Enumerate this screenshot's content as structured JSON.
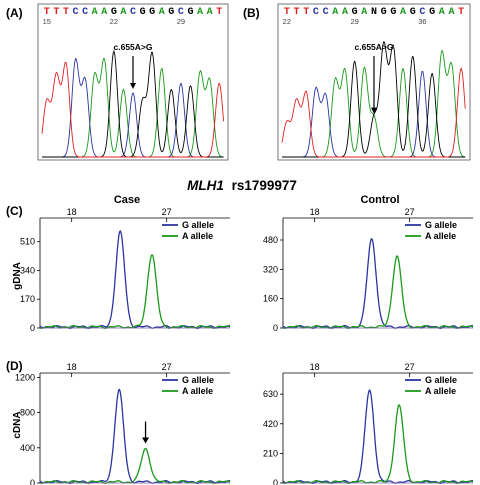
{
  "figure_title": {
    "gene": "MLH1",
    "snp": "rs1799977"
  },
  "colors": {
    "A": "#1a9a1a",
    "C": "#2a35a0",
    "G": "#000000",
    "T": "#e02020",
    "G_allele": "#2a35a0",
    "A_allele": "#1a9a1a"
  },
  "chart_data": [
    {
      "type": "line",
      "panel": "(A)",
      "sequence": [
        "T",
        "T",
        "T",
        "C",
        "C",
        "A",
        "A",
        "G",
        "A",
        "C",
        "G",
        "G",
        "A",
        "G",
        "C",
        "G",
        "A",
        "A",
        "T"
      ],
      "positions": [
        {
          "index": 0,
          "label": "15"
        },
        {
          "index": 7,
          "label": "22"
        },
        {
          "index": 14,
          "label": "29"
        }
      ],
      "peak_heights": [
        0.45,
        0.65,
        0.75,
        0.78,
        0.62,
        0.66,
        0.78,
        0.86,
        0.55,
        0.52,
        0.45,
        0.84,
        0.72,
        0.55,
        0.6,
        0.58,
        0.68,
        0.62,
        0.6
      ],
      "mutation_index": 9,
      "annotation": "c.655A>G"
    },
    {
      "type": "line",
      "panel": "(B)",
      "sequence": [
        "T",
        "T",
        "T",
        "C",
        "C",
        "A",
        "A",
        "G",
        "A",
        "N",
        "G",
        "G",
        "A",
        "G",
        "C",
        "G",
        "A",
        "A",
        "T"
      ],
      "positions": [
        {
          "index": 0,
          "label": "22"
        },
        {
          "index": 7,
          "label": "29"
        },
        {
          "index": 14,
          "label": "36"
        }
      ],
      "peak_heights": [
        0.28,
        0.45,
        0.52,
        0.55,
        0.5,
        0.62,
        0.7,
        0.78,
        0.72,
        0.32,
        0.9,
        0.88,
        0.72,
        0.82,
        0.7,
        0.68,
        0.84,
        0.74,
        0.72
      ],
      "mutation_index": 9,
      "annotation": "c.655A>G"
    },
    {
      "type": "line",
      "panel": "(C)",
      "column": "Case",
      "ylabel": "gDNA",
      "xticks": [
        18,
        27
      ],
      "yticks": [
        0,
        170,
        340,
        510
      ],
      "ylim": [
        0,
        650
      ],
      "xlim": [
        15,
        33
      ],
      "series": [
        {
          "name": "G allele",
          "center": 22.6,
          "height": 560
        },
        {
          "name": "A allele",
          "center": 25.6,
          "height": 430
        }
      ]
    },
    {
      "type": "line",
      "panel": "(C)",
      "column": "Control",
      "xticks": [
        18,
        27
      ],
      "yticks": [
        0,
        160,
        320,
        480
      ],
      "ylim": [
        0,
        600
      ],
      "xlim": [
        15,
        33
      ],
      "series": [
        {
          "name": "G allele",
          "center": 23.4,
          "height": 480
        },
        {
          "name": "A allele",
          "center": 25.8,
          "height": 385
        }
      ]
    },
    {
      "type": "line",
      "panel": "(D)",
      "ylabel": "cDNA",
      "xticks": [
        18,
        27
      ],
      "yticks": [
        0,
        400,
        800,
        1200
      ],
      "ylim": [
        0,
        1250
      ],
      "xlim": [
        15,
        33
      ],
      "arrow_at": 25.0,
      "series": [
        {
          "name": "G allele",
          "center": 22.5,
          "height": 1040
        },
        {
          "name": "A allele",
          "center": 25.0,
          "height": 380
        }
      ]
    },
    {
      "type": "line",
      "panel": "(D)",
      "xticks": [
        18,
        27
      ],
      "yticks": [
        0,
        210,
        420,
        630
      ],
      "ylim": [
        0,
        780
      ],
      "xlim": [
        15,
        33
      ],
      "series": [
        {
          "name": "G allele",
          "center": 23.2,
          "height": 650
        },
        {
          "name": "A allele",
          "center": 26.0,
          "height": 540
        }
      ]
    }
  ]
}
